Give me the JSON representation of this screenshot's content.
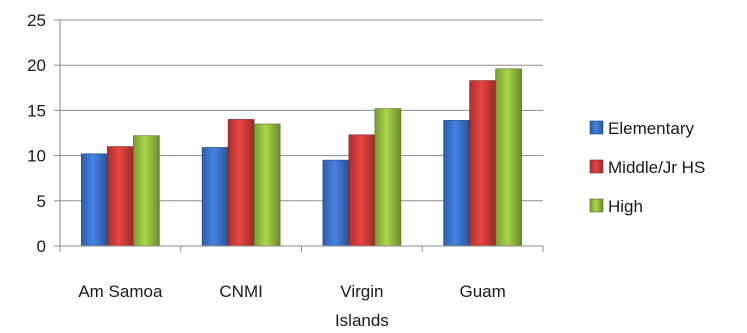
{
  "chart_data": {
    "type": "bar",
    "title": "",
    "xlabel": "",
    "ylabel": "",
    "ylim": [
      0,
      25
    ],
    "yticks": [
      "0",
      "5",
      "10",
      "15",
      "20",
      "25"
    ],
    "categories": [
      [
        "Am Samoa"
      ],
      [
        "CNMI"
      ],
      [
        "Virgin",
        "Islands"
      ],
      [
        "Guam"
      ]
    ],
    "series": [
      {
        "name": "Elementary",
        "values": [
          10.2,
          10.9,
          9.5,
          13.9
        ],
        "color": "#3a6fc4"
      },
      {
        "name": "Middle/Jr HS",
        "values": [
          11.0,
          14.0,
          12.3,
          18.3
        ],
        "color": "#c73a36"
      },
      {
        "name": "High",
        "values": [
          12.2,
          13.5,
          15.2,
          19.6
        ],
        "color": "#8fb63c"
      }
    ],
    "grid": true,
    "legend_position": "right"
  }
}
